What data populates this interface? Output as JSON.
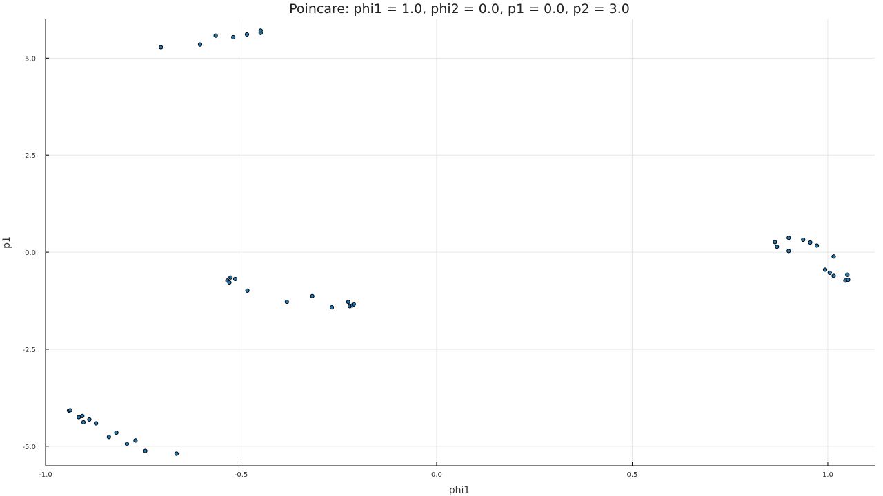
{
  "chart_data": {
    "type": "scatter",
    "title": "Poincare: phi1 = 1.0, phi2 = 0.0, p1 = 0.0, p2 = 3.0",
    "xlabel": "phi1",
    "ylabel": "p1",
    "xlim": [
      -1.0,
      1.12
    ],
    "ylim": [
      -5.5,
      6.0
    ],
    "xticks": [
      -1.0,
      -0.5,
      0.0,
      0.5,
      1.0
    ],
    "xtick_labels": [
      "-1.0",
      "-0.5",
      "0.0",
      "0.5",
      "1.0"
    ],
    "yticks": [
      -5.0,
      -2.5,
      0.0,
      2.5,
      5.0
    ],
    "ytick_labels": [
      "-5.0",
      "-2.5",
      "0.0",
      "2.5",
      "5.0"
    ],
    "grid": true,
    "legend": "none",
    "marker_color": "#1f78b4",
    "x": [
      -0.705,
      -0.605,
      -0.565,
      -0.52,
      -0.485,
      -0.45,
      -0.45,
      -0.535,
      -0.53,
      -0.527,
      -0.515,
      -0.484,
      -0.383,
      -0.318,
      -0.268,
      -0.226,
      -0.222,
      -0.215,
      -0.212,
      -0.94,
      -0.937,
      -0.915,
      -0.906,
      -0.903,
      -0.888,
      -0.871,
      -0.838,
      -0.819,
      -0.792,
      -0.77,
      -0.745,
      -0.665,
      0.865,
      0.87,
      0.9,
      0.9,
      0.937,
      0.955,
      0.972,
      0.993,
      1.005,
      1.015,
      1.015,
      1.045,
      1.05,
      1.052
    ],
    "y": [
      5.28,
      5.35,
      5.58,
      5.54,
      5.61,
      5.65,
      5.71,
      -0.73,
      -0.78,
      -0.65,
      -0.69,
      -0.99,
      -1.28,
      -1.13,
      -1.42,
      -1.28,
      -1.39,
      -1.37,
      -1.34,
      -4.08,
      -4.07,
      -4.25,
      -4.22,
      -4.38,
      -4.31,
      -4.41,
      -4.76,
      -4.65,
      -4.94,
      -4.85,
      -5.12,
      -5.19,
      0.26,
      0.14,
      0.37,
      0.03,
      0.32,
      0.25,
      0.17,
      -0.45,
      -0.53,
      -0.61,
      -0.11,
      -0.73,
      -0.58,
      -0.71
    ]
  }
}
